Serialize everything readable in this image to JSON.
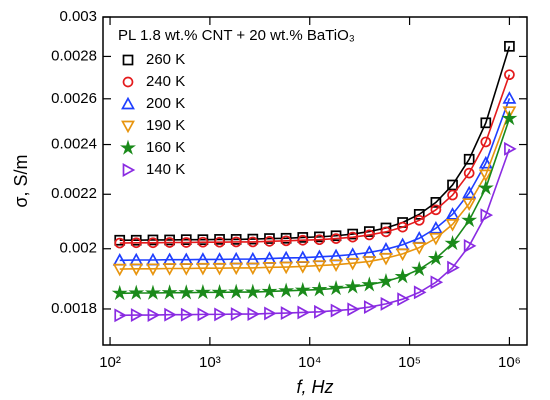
{
  "chart_data": {
    "type": "scatter",
    "title": "PL 1.8 wt.% CNT + 20 wt.% BaTiO₃",
    "xlabel": "f, Hz",
    "ylabel": "σ, S/m",
    "xscale": "log",
    "yscale": "log",
    "xlim": [
      85,
      1500000
    ],
    "ylim": [
      0.00169,
      0.003
    ],
    "xticks": [
      {
        "value": 100,
        "label": "10²"
      },
      {
        "value": 1000,
        "label": "10³"
      },
      {
        "value": 10000,
        "label": "10⁴"
      },
      {
        "value": 100000,
        "label": "10⁵"
      },
      {
        "value": 1000000,
        "label": "10⁶"
      }
    ],
    "yticks": [
      0.0018,
      0.002,
      0.0022,
      0.0024,
      0.0026,
      0.0028,
      0.003
    ],
    "legend": "upper left",
    "lines": true,
    "x": [
      125,
      183,
      269,
      395,
      580,
      851,
      1250,
      1834,
      2692,
      3952,
      5802,
      8516,
      12500,
      18347,
      26930,
      39527,
      58018,
      85160,
      125000,
      183473,
      269297,
      395271,
      580178,
      1000000
    ],
    "series": [
      {
        "name": "260 K",
        "color": "#000000",
        "marker": "square",
        "values": [
          0.00203,
          0.00203,
          0.002031,
          0.002031,
          0.002032,
          0.002032,
          0.002033,
          0.002033,
          0.002034,
          0.002036,
          0.002037,
          0.00204,
          0.002042,
          0.002046,
          0.002052,
          0.002061,
          0.002074,
          0.002094,
          0.002124,
          0.002169,
          0.002236,
          0.002339,
          0.002493,
          0.00285
        ]
      },
      {
        "name": "240 K",
        "color": "#e41a1c",
        "marker": "circle",
        "values": [
          0.00202,
          0.002021,
          0.002021,
          0.002022,
          0.002022,
          0.002023,
          0.002023,
          0.002024,
          0.002024,
          0.002026,
          0.002028,
          0.00203,
          0.002032,
          0.002036,
          0.002041,
          0.002049,
          0.00206,
          0.002077,
          0.002102,
          0.002141,
          0.002197,
          0.002283,
          0.002411,
          0.002712
        ]
      },
      {
        "name": "200 K",
        "color": "#1f3fff",
        "marker": "triangle-up",
        "values": [
          0.00196,
          0.001961,
          0.001961,
          0.001962,
          0.001962,
          0.001963,
          0.001963,
          0.001964,
          0.001964,
          0.001966,
          0.001968,
          0.001969,
          0.001972,
          0.001975,
          0.00198,
          0.001987,
          0.001998,
          0.002014,
          0.002037,
          0.002073,
          0.002124,
          0.002205,
          0.002323,
          0.002602
        ]
      },
      {
        "name": "190 K",
        "color": "#e8950f",
        "marker": "triangle-down",
        "values": [
          0.00193,
          0.001931,
          0.001931,
          0.001932,
          0.001932,
          0.001933,
          0.001933,
          0.001934,
          0.001934,
          0.001936,
          0.001937,
          0.001939,
          0.001942,
          0.001945,
          0.00195,
          0.001956,
          0.001967,
          0.001982,
          0.002004,
          0.002037,
          0.002087,
          0.002164,
          0.002276,
          0.002542
        ]
      },
      {
        "name": "160 K",
        "color": "#1a8a1a",
        "marker": "star",
        "values": [
          0.00185,
          0.001851,
          0.001851,
          0.001852,
          0.001852,
          0.001853,
          0.001853,
          0.001854,
          0.001854,
          0.001856,
          0.001858,
          0.00186,
          0.001862,
          0.001866,
          0.001871,
          0.001878,
          0.001889,
          0.001905,
          0.001929,
          0.001966,
          0.002019,
          0.002102,
          0.002224,
          0.002512
        ]
      },
      {
        "name": "140 K",
        "color": "#8a2be2",
        "marker": "triangle-right",
        "values": [
          0.00178,
          0.001781,
          0.001781,
          0.001782,
          0.001782,
          0.001783,
          0.001783,
          0.001784,
          0.001784,
          0.001786,
          0.001787,
          0.001789,
          0.001791,
          0.001795,
          0.001799,
          0.001806,
          0.001816,
          0.001831,
          0.001853,
          0.001886,
          0.001935,
          0.00201,
          0.002121,
          0.002382
        ]
      }
    ]
  }
}
